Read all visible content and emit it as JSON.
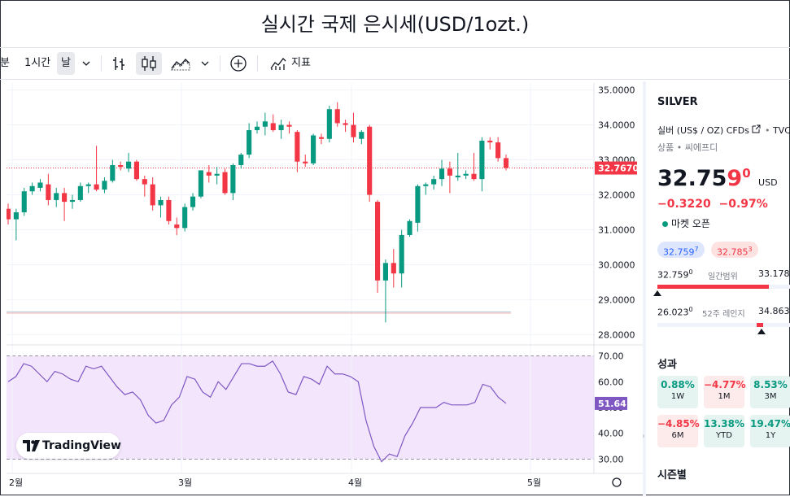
{
  "page_title": "실시간 국제 은시세(USD/1ozt.)",
  "toolbar": {
    "range_partial": "분",
    "interval_1h": "1시간",
    "interval_day": "날",
    "indicators_label": "지표"
  },
  "chart_data": {
    "type": "candlestick",
    "price_axis": {
      "ylim": [
        27.8,
        35.2
      ],
      "ticks": [
        "35.0000",
        "34.0000",
        "33.0000",
        "32.0000",
        "31.0000",
        "30.0000",
        "29.0000",
        "28.0000"
      ],
      "tick_values": [
        35,
        34,
        33,
        32,
        31,
        30,
        29,
        28
      ]
    },
    "last_price_label": "32.7670",
    "last_price": 32.767,
    "low_line": 28.65,
    "x_labels": [
      "2월",
      "3월",
      "4월",
      "5월"
    ],
    "candles": [
      {
        "o": 31.6,
        "h": 31.75,
        "l": 31.15,
        "c": 31.3
      },
      {
        "o": 31.3,
        "h": 31.6,
        "l": 30.7,
        "c": 31.5
      },
      {
        "o": 31.5,
        "h": 32.2,
        "l": 31.4,
        "c": 32.1
      },
      {
        "o": 32.1,
        "h": 32.35,
        "l": 32.0,
        "c": 32.25
      },
      {
        "o": 32.2,
        "h": 32.45,
        "l": 32.1,
        "c": 32.35
      },
      {
        "o": 32.3,
        "h": 32.6,
        "l": 31.7,
        "c": 31.85
      },
      {
        "o": 31.85,
        "h": 32.2,
        "l": 31.65,
        "c": 32.05
      },
      {
        "o": 32.05,
        "h": 32.2,
        "l": 31.25,
        "c": 31.8
      },
      {
        "o": 31.8,
        "h": 32.0,
        "l": 31.6,
        "c": 31.85
      },
      {
        "o": 31.85,
        "h": 32.35,
        "l": 31.8,
        "c": 32.25
      },
      {
        "o": 32.25,
        "h": 32.35,
        "l": 32.05,
        "c": 32.3
      },
      {
        "o": 32.3,
        "h": 33.4,
        "l": 32.1,
        "c": 32.15
      },
      {
        "o": 32.15,
        "h": 32.5,
        "l": 32.05,
        "c": 32.4
      },
      {
        "o": 32.4,
        "h": 33.0,
        "l": 32.35,
        "c": 32.85
      },
      {
        "o": 32.85,
        "h": 32.95,
        "l": 32.7,
        "c": 32.8
      },
      {
        "o": 32.75,
        "h": 33.2,
        "l": 32.65,
        "c": 32.95
      },
      {
        "o": 32.95,
        "h": 33.0,
        "l": 32.4,
        "c": 32.45
      },
      {
        "o": 32.45,
        "h": 32.55,
        "l": 31.95,
        "c": 32.3
      },
      {
        "o": 32.3,
        "h": 32.5,
        "l": 31.55,
        "c": 31.7
      },
      {
        "o": 31.7,
        "h": 31.95,
        "l": 31.35,
        "c": 31.85
      },
      {
        "o": 31.85,
        "h": 31.95,
        "l": 31.15,
        "c": 31.25
      },
      {
        "o": 31.15,
        "h": 31.35,
        "l": 30.85,
        "c": 31.05
      },
      {
        "o": 31.05,
        "h": 31.75,
        "l": 30.95,
        "c": 31.65
      },
      {
        "o": 31.65,
        "h": 32.05,
        "l": 31.55,
        "c": 31.95
      },
      {
        "o": 31.95,
        "h": 32.7,
        "l": 31.9,
        "c": 32.7
      },
      {
        "o": 32.65,
        "h": 32.85,
        "l": 32.35,
        "c": 32.55
      },
      {
        "o": 32.55,
        "h": 32.8,
        "l": 32.3,
        "c": 32.6
      },
      {
        "o": 32.65,
        "h": 32.75,
        "l": 32.0,
        "c": 32.05
      },
      {
        "o": 32.05,
        "h": 32.9,
        "l": 31.85,
        "c": 32.85
      },
      {
        "o": 32.85,
        "h": 33.2,
        "l": 32.75,
        "c": 33.15
      },
      {
        "o": 33.15,
        "h": 34.05,
        "l": 33.05,
        "c": 33.85
      },
      {
        "o": 33.85,
        "h": 34.1,
        "l": 33.75,
        "c": 33.95
      },
      {
        "o": 33.95,
        "h": 34.35,
        "l": 33.7,
        "c": 34.1
      },
      {
        "o": 34.05,
        "h": 34.3,
        "l": 33.8,
        "c": 33.85
      },
      {
        "o": 33.85,
        "h": 34.15,
        "l": 33.6,
        "c": 34.0
      },
      {
        "o": 34.0,
        "h": 34.1,
        "l": 33.75,
        "c": 33.95
      },
      {
        "o": 33.8,
        "h": 33.85,
        "l": 32.65,
        "c": 32.95
      },
      {
        "o": 32.95,
        "h": 33.15,
        "l": 32.8,
        "c": 32.9
      },
      {
        "o": 32.9,
        "h": 33.75,
        "l": 32.85,
        "c": 33.7
      },
      {
        "o": 33.65,
        "h": 33.75,
        "l": 33.45,
        "c": 33.6
      },
      {
        "o": 33.6,
        "h": 34.55,
        "l": 33.5,
        "c": 34.45
      },
      {
        "o": 34.45,
        "h": 34.65,
        "l": 33.95,
        "c": 34.05
      },
      {
        "o": 34.05,
        "h": 34.15,
        "l": 33.8,
        "c": 34.0
      },
      {
        "o": 34.0,
        "h": 34.35,
        "l": 33.5,
        "c": 33.65
      },
      {
        "o": 33.6,
        "h": 33.85,
        "l": 33.45,
        "c": 33.8
      },
      {
        "o": 33.95,
        "h": 34.0,
        "l": 31.8,
        "c": 32.0
      },
      {
        "o": 31.8,
        "h": 31.85,
        "l": 29.2,
        "c": 29.55
      },
      {
        "o": 29.55,
        "h": 30.15,
        "l": 28.35,
        "c": 30.05
      },
      {
        "o": 30.05,
        "h": 30.45,
        "l": 29.35,
        "c": 29.75
      },
      {
        "o": 29.75,
        "h": 31.0,
        "l": 29.35,
        "c": 30.85
      },
      {
        "o": 30.85,
        "h": 31.3,
        "l": 30.8,
        "c": 31.25
      },
      {
        "o": 31.2,
        "h": 32.3,
        "l": 30.95,
        "c": 32.25
      },
      {
        "o": 32.25,
        "h": 32.35,
        "l": 32.0,
        "c": 32.3
      },
      {
        "o": 32.3,
        "h": 32.55,
        "l": 32.15,
        "c": 32.45
      },
      {
        "o": 32.45,
        "h": 33.0,
        "l": 32.25,
        "c": 32.75
      },
      {
        "o": 32.75,
        "h": 32.95,
        "l": 32.05,
        "c": 32.55
      },
      {
        "o": 32.5,
        "h": 33.2,
        "l": 32.4,
        "c": 32.55
      },
      {
        "o": 32.55,
        "h": 32.7,
        "l": 32.45,
        "c": 32.6
      },
      {
        "o": 32.6,
        "h": 33.2,
        "l": 32.4,
        "c": 32.45
      },
      {
        "o": 32.45,
        "h": 33.65,
        "l": 32.1,
        "c": 33.55
      },
      {
        "o": 33.55,
        "h": 33.65,
        "l": 33.3,
        "c": 33.5
      },
      {
        "o": 33.5,
        "h": 33.65,
        "l": 32.95,
        "c": 33.05
      },
      {
        "o": 33.05,
        "h": 33.15,
        "l": 32.7,
        "c": 32.77
      }
    ],
    "rsi": {
      "ticks": [
        "70.00",
        "60.00",
        "50.00",
        "40.00",
        "30.00"
      ],
      "tick_values": [
        70,
        60,
        50,
        40,
        30
      ],
      "ylim": [
        27,
        73
      ],
      "upper": 70,
      "lower": 30,
      "last_label": "51.64",
      "values": [
        60,
        62,
        67,
        66,
        63,
        60,
        64,
        63,
        61,
        60,
        66,
        65,
        66,
        62,
        58,
        55,
        56,
        53,
        47,
        44,
        45,
        51,
        54,
        62,
        61,
        56,
        54,
        60,
        57,
        62,
        67,
        67,
        66,
        66,
        68,
        63,
        56,
        55,
        62,
        61,
        59,
        66,
        63,
        63,
        62,
        60,
        45,
        35,
        29,
        32,
        31,
        39,
        44,
        50,
        50,
        50,
        52,
        51,
        51,
        51,
        52,
        59,
        58,
        54,
        51.6
      ]
    }
  },
  "right_panel": {
    "symbol": "SILVER",
    "description": "실버 (US$ / OZ) CFDs",
    "source": "TVC",
    "category": "상품 • 씨에프디",
    "price_main": "32.75",
    "price_tail": "9",
    "price_sup": "0",
    "price_currency": "USD",
    "change_abs": "−0.3220",
    "change_pct": "−0.97%",
    "market_status": "마켓 오픈",
    "bid_main": "32.759",
    "bid_sup": "7",
    "ask_main": "32.785",
    "ask_sup": "3",
    "day_low_main": "32.759",
    "day_low_sup": "0",
    "day_range_label": "일간범위",
    "day_high": "33.178",
    "day_range_fraction": 0.0,
    "wk_low_main": "26.023",
    "wk_low_sup": "0",
    "wk_range_label": "52주 레인지",
    "wk_high": "34.863",
    "wk_range_fraction": 0.76,
    "perf_title": "성과",
    "performance": [
      {
        "value": "0.88%",
        "label": "1W",
        "sign": "pos"
      },
      {
        "value": "−4.77%",
        "label": "1M",
        "sign": "neg"
      },
      {
        "value": "8.53%",
        "label": "3M",
        "sign": "pos"
      },
      {
        "value": "−4.85%",
        "label": "6M",
        "sign": "neg"
      },
      {
        "value": "13.38%",
        "label": "YTD",
        "sign": "pos"
      },
      {
        "value": "19.47%",
        "label": "1Y",
        "sign": "pos"
      }
    ],
    "seasonal_title": "시즌별"
  },
  "branding": {
    "logo_text": "TradingView"
  },
  "colors": {
    "up": "#089981",
    "down": "#f23645",
    "rsi_line": "#7e57c2",
    "rsi_fill": "#f3e5fc"
  }
}
